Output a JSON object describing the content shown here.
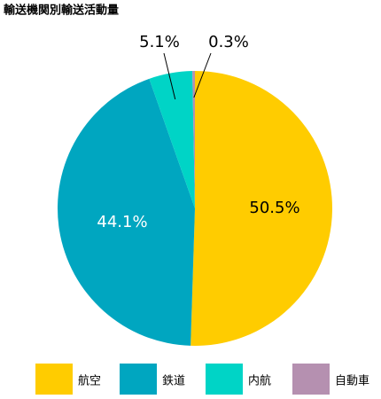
{
  "chart_data": {
    "type": "pie",
    "title": "輸送機関別輸送活動量",
    "categories": [
      "航空",
      "鉄道",
      "内航",
      "自動車"
    ],
    "values": [
      50.5,
      44.1,
      5.1,
      0.3
    ],
    "value_labels": [
      "50.5%",
      "44.1%",
      "5.1%",
      "0.3%"
    ],
    "colors": [
      "#FFCC00",
      "#00A6C0",
      "#00D4C6",
      "#B590B0"
    ]
  }
}
